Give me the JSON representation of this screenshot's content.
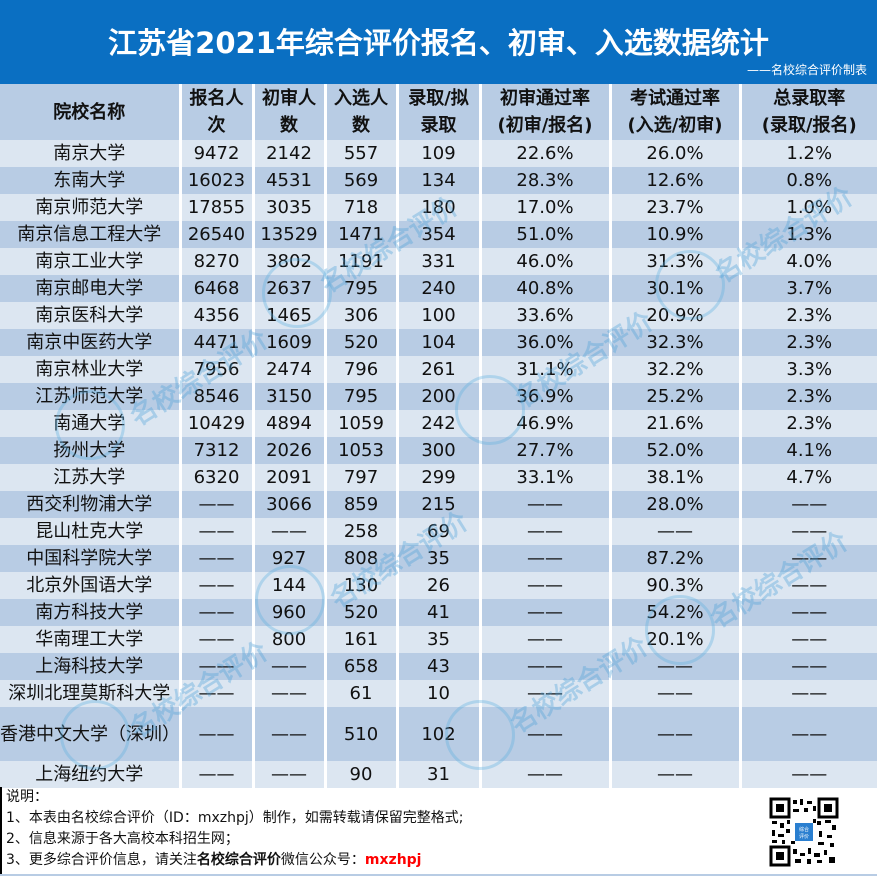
{
  "header": {
    "title": "江苏省2021年综合评价报名、初审、入选数据统计",
    "subtitle": "——名校综合评价制表"
  },
  "table": {
    "columns": [
      {
        "line1": "院校名称",
        "line2": ""
      },
      {
        "line1": "报名人",
        "line2": "次"
      },
      {
        "line1": "初审人",
        "line2": "数"
      },
      {
        "line1": "入选人",
        "line2": "数"
      },
      {
        "line1": "录取/拟",
        "line2": "录取"
      },
      {
        "line1": "初审通过率",
        "line2": "(初审/报名)"
      },
      {
        "line1": "考试通过率",
        "line2": "(入选/初审)"
      },
      {
        "line1": "总录取率",
        "line2": "(录取/报名)"
      }
    ],
    "rows": [
      [
        "南京大学",
        "9472",
        "2142",
        "557",
        "109",
        "22.6%",
        "26.0%",
        "1.2%"
      ],
      [
        "东南大学",
        "16023",
        "4531",
        "569",
        "134",
        "28.3%",
        "12.6%",
        "0.8%"
      ],
      [
        "南京师范大学",
        "17855",
        "3035",
        "718",
        "180",
        "17.0%",
        "23.7%",
        "1.0%"
      ],
      [
        "南京信息工程大学",
        "26540",
        "13529",
        "1471",
        "354",
        "51.0%",
        "10.9%",
        "1.3%"
      ],
      [
        "南京工业大学",
        "8270",
        "3802",
        "1191",
        "331",
        "46.0%",
        "31.3%",
        "4.0%"
      ],
      [
        "南京邮电大学",
        "6468",
        "2637",
        "795",
        "240",
        "40.8%",
        "30.1%",
        "3.7%"
      ],
      [
        "南京医科大学",
        "4356",
        "1465",
        "306",
        "100",
        "33.6%",
        "20.9%",
        "2.3%"
      ],
      [
        "南京中医药大学",
        "4471",
        "1609",
        "520",
        "104",
        "36.0%",
        "32.3%",
        "2.3%"
      ],
      [
        "南京林业大学",
        "7956",
        "2474",
        "796",
        "261",
        "31.1%",
        "32.2%",
        "3.3%"
      ],
      [
        "江苏师范大学",
        "8546",
        "3150",
        "795",
        "200",
        "36.9%",
        "25.2%",
        "2.3%"
      ],
      [
        "南通大学",
        "10429",
        "4894",
        "1059",
        "242",
        "46.9%",
        "21.6%",
        "2.3%"
      ],
      [
        "扬州大学",
        "7312",
        "2026",
        "1053",
        "300",
        "27.7%",
        "52.0%",
        "4.1%"
      ],
      [
        "江苏大学",
        "6320",
        "2091",
        "797",
        "299",
        "33.1%",
        "38.1%",
        "4.7%"
      ],
      [
        "西交利物浦大学",
        "——",
        "3066",
        "859",
        "215",
        "——",
        "28.0%",
        "——"
      ],
      [
        "昆山杜克大学",
        "——",
        "——",
        "258",
        "69",
        "——",
        "——",
        "——"
      ],
      [
        "中国科学院大学",
        "——",
        "927",
        "808",
        "35",
        "——",
        "87.2%",
        "——"
      ],
      [
        "北京外国语大学",
        "——",
        "144",
        "130",
        "26",
        "——",
        "90.3%",
        "——"
      ],
      [
        "南方科技大学",
        "——",
        "960",
        "520",
        "41",
        "——",
        "54.2%",
        "——"
      ],
      [
        "华南理工大学",
        "——",
        "800",
        "161",
        "35",
        "——",
        "20.1%",
        "——"
      ],
      [
        "上海科技大学",
        "——",
        "——",
        "658",
        "43",
        "——",
        "——",
        "——"
      ],
      [
        "深圳北理莫斯科大学",
        "——",
        "——",
        "61",
        "10",
        "——",
        "——",
        "——"
      ],
      [
        "香港中文大学（深圳）",
        "——",
        "——",
        "510",
        "102",
        "——",
        "——",
        "——"
      ],
      [
        "上海纽约大学",
        "——",
        "——",
        "90",
        "31",
        "——",
        "——",
        "——"
      ]
    ]
  },
  "notes": {
    "heading": "说明：",
    "line1": "1、本表由名校综合评价（ID：mxzhpj）制作，如需转载请保留完整格式;",
    "line2": "2、信息来源于各大高校本科招生网；",
    "line3_prefix": "3、更多综合评价信息，请关注",
    "line3_bold": "名校综合评价",
    "line3_mid": "微信公众号：",
    "line3_red": "mxzhpj"
  },
  "qr": {
    "icon": "qr-code-icon",
    "center_label_1": "综合",
    "center_label_2": "评价"
  },
  "watermark": {
    "text": "名校综合评价",
    "sub": "微信号:mxzhpj",
    "logo": "ZP"
  },
  "colors": {
    "title_bg": "#0a6fc2",
    "header_bg": "#b8cce4",
    "row_light": "#dce6f1",
    "row_dark": "#b8cce4",
    "accent_red": "#ff0000"
  }
}
